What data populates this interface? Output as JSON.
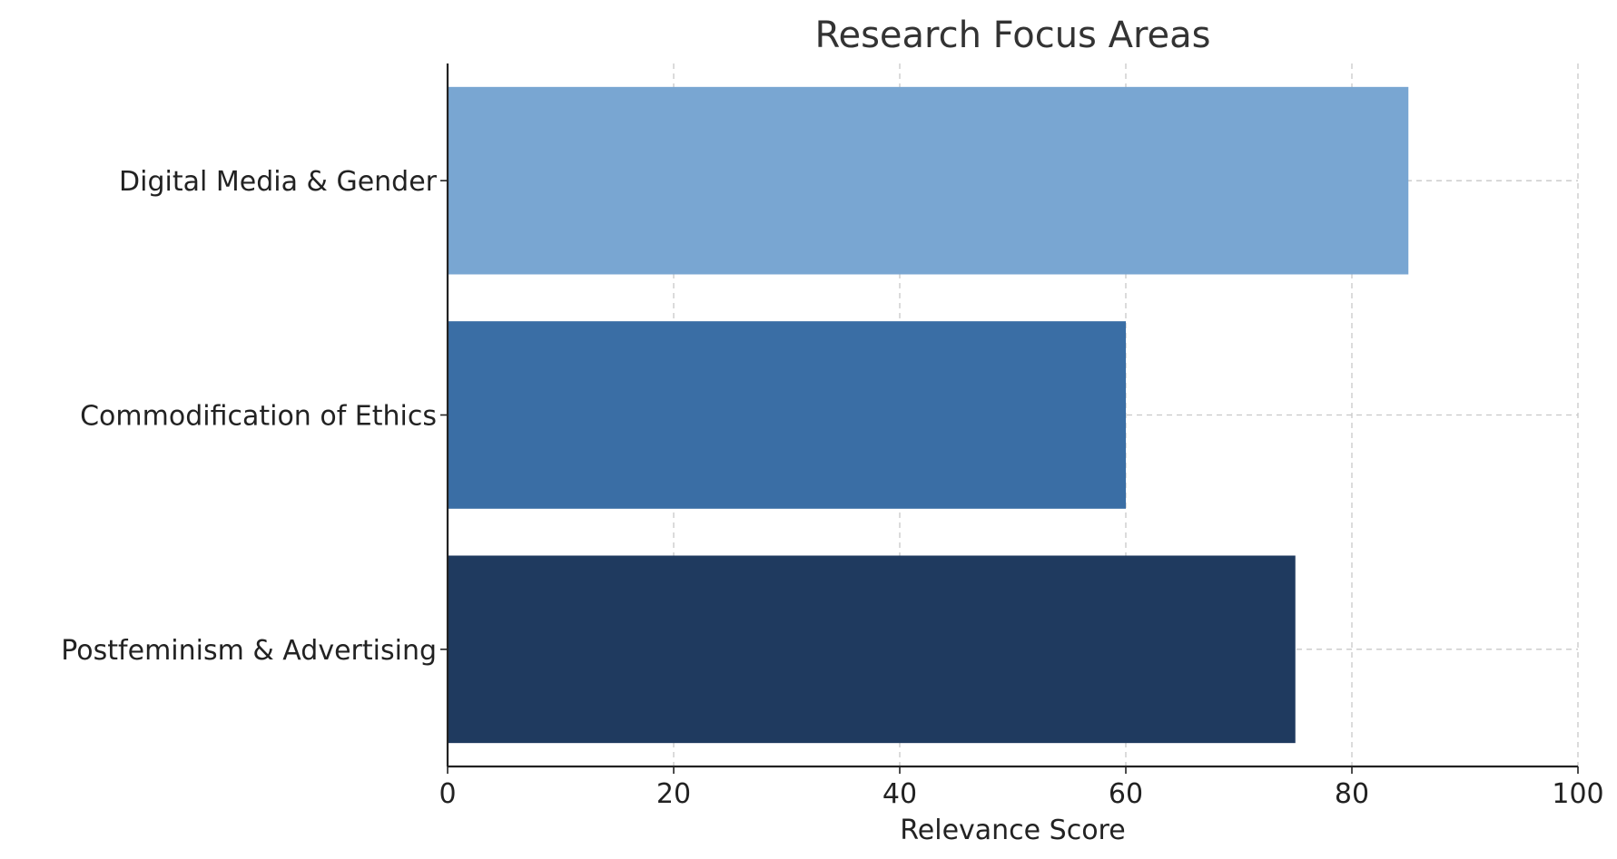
{
  "chart_data": {
    "type": "bar",
    "orientation": "horizontal",
    "title": "Research Focus Areas",
    "xlabel": "Relevance Score",
    "ylabel": "",
    "categories": [
      "Digital Media & Gender",
      "Commodification of Ethics",
      "Postfeminism & Advertising"
    ],
    "values": [
      85,
      60,
      75
    ],
    "colors": [
      "#79a6d2",
      "#3a6ea5",
      "#1f3a5f"
    ],
    "xlim": [
      0,
      100
    ],
    "xticks": [
      0,
      20,
      40,
      60,
      80,
      100
    ],
    "grid": true,
    "legend": false
  }
}
